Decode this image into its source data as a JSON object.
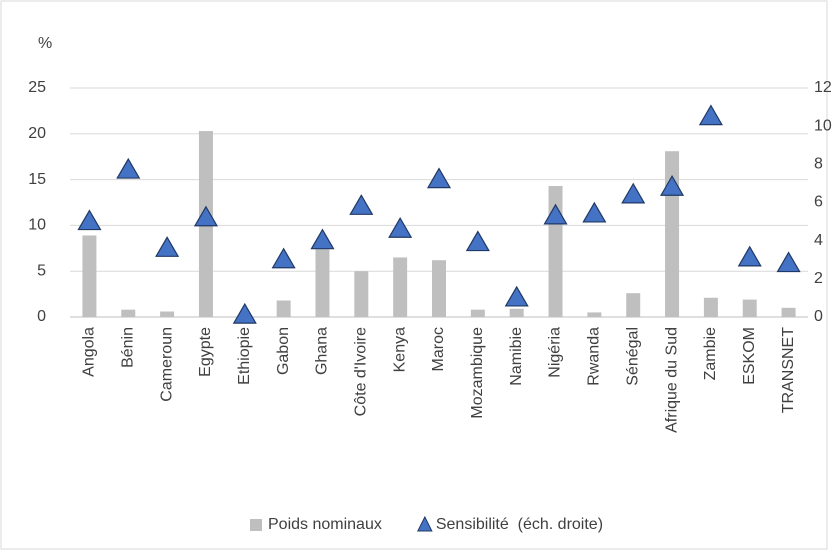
{
  "chart_data": {
    "type": "bar",
    "y_label": "%",
    "categories": [
      "Angola",
      "Bénin",
      "Cameroun",
      "Egypte",
      "Ethiopie",
      "Gabon",
      "Ghana",
      "Côte d'Ivoire",
      "Kenya",
      "Maroc",
      "Mozambique",
      "Namibie",
      "Nigéria",
      "Rwanda",
      "Sénégal",
      "Afrique du Sud",
      "Zambie",
      "ESKOM",
      "TRANSNET"
    ],
    "series": [
      {
        "name": "Poids nominaux",
        "type": "bar",
        "axis": "y",
        "color": "#bfbfbf",
        "values": [
          8.9,
          0.8,
          0.6,
          20.3,
          0.1,
          1.8,
          7.4,
          5.0,
          6.5,
          6.2,
          0.8,
          0.9,
          14.3,
          0.5,
          2.6,
          18.1,
          2.1,
          1.9,
          1.0
        ]
      },
      {
        "name": "Sensibilité  (éch. droite)",
        "type": "scatter",
        "marker": "triangle",
        "axis": "y2",
        "color": "#4472c4",
        "values": [
          5.0,
          7.7,
          3.6,
          5.2,
          0.1,
          3.0,
          4.0,
          5.8,
          4.6,
          7.2,
          3.9,
          1.0,
          5.3,
          5.4,
          6.4,
          6.8,
          10.5,
          3.1,
          2.8
        ]
      }
    ],
    "ylim": [
      0,
      25
    ],
    "yticks": [
      0,
      5,
      10,
      15,
      20,
      25
    ],
    "y2lim": [
      0,
      12
    ],
    "y2ticks": [
      0,
      2,
      4,
      6,
      8,
      10,
      12
    ],
    "grid": true,
    "legend": "bottom"
  }
}
